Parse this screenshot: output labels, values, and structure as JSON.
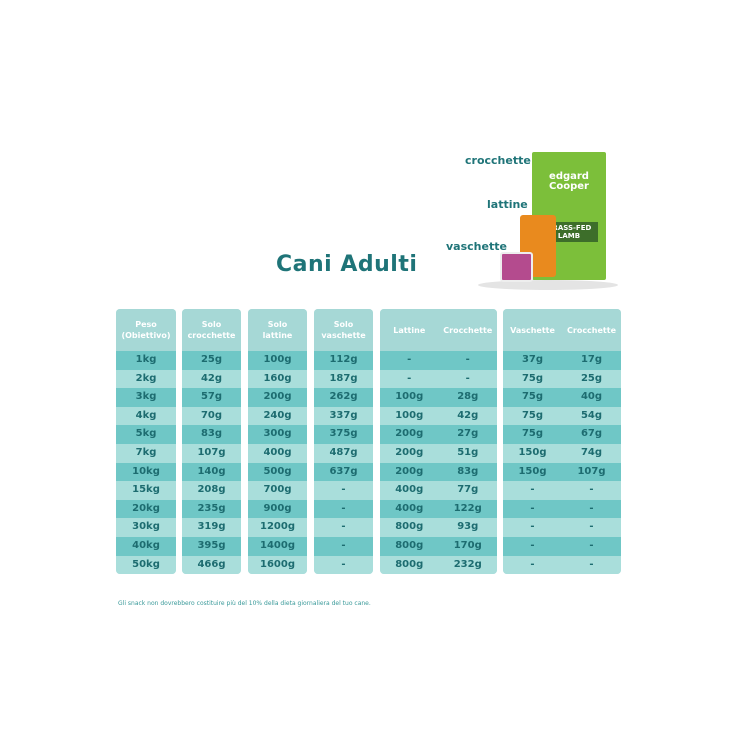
{
  "title": "Cani Adulti",
  "product": {
    "labels": {
      "kibble": "crocchette",
      "cans": "lattine",
      "trays": "vaschette"
    },
    "brand": "edgard Cooper",
    "flavor": "GRASS-FED LAMB"
  },
  "groups": [
    {
      "headers": [
        "Peso\n(Obiettivo)"
      ],
      "rows": [
        [
          "1kg"
        ],
        [
          "2kg"
        ],
        [
          "3kg"
        ],
        [
          "4kg"
        ],
        [
          "5kg"
        ],
        [
          "7kg"
        ],
        [
          "10kg"
        ],
        [
          "15kg"
        ],
        [
          "20kg"
        ],
        [
          "30kg"
        ],
        [
          "40kg"
        ],
        [
          "50kg"
        ]
      ]
    },
    {
      "headers": [
        "Solo\ncrocchette"
      ],
      "rows": [
        [
          "25g"
        ],
        [
          "42g"
        ],
        [
          "57g"
        ],
        [
          "70g"
        ],
        [
          "83g"
        ],
        [
          "107g"
        ],
        [
          "140g"
        ],
        [
          "208g"
        ],
        [
          "235g"
        ],
        [
          "319g"
        ],
        [
          "395g"
        ],
        [
          "466g"
        ]
      ]
    },
    {
      "headers": [
        "Solo\nlattine"
      ],
      "rows": [
        [
          "100g"
        ],
        [
          "160g"
        ],
        [
          "200g"
        ],
        [
          "240g"
        ],
        [
          "300g"
        ],
        [
          "400g"
        ],
        [
          "500g"
        ],
        [
          "700g"
        ],
        [
          "900g"
        ],
        [
          "1200g"
        ],
        [
          "1400g"
        ],
        [
          "1600g"
        ]
      ]
    },
    {
      "headers": [
        "Solo\nvaschette"
      ],
      "rows": [
        [
          "112g"
        ],
        [
          "187g"
        ],
        [
          "262g"
        ],
        [
          "337g"
        ],
        [
          "375g"
        ],
        [
          "487g"
        ],
        [
          "637g"
        ],
        [
          "-"
        ],
        [
          "-"
        ],
        [
          "-"
        ],
        [
          "-"
        ],
        [
          "-"
        ]
      ]
    },
    {
      "headers": [
        "Lattine",
        "Crocchette"
      ],
      "rows": [
        [
          "-",
          "-"
        ],
        [
          "-",
          "-"
        ],
        [
          "100g",
          "28g"
        ],
        [
          "100g",
          "42g"
        ],
        [
          "200g",
          "27g"
        ],
        [
          "200g",
          "51g"
        ],
        [
          "200g",
          "83g"
        ],
        [
          "400g",
          "77g"
        ],
        [
          "400g",
          "122g"
        ],
        [
          "800g",
          "93g"
        ],
        [
          "800g",
          "170g"
        ],
        [
          "800g",
          "232g"
        ]
      ]
    },
    {
      "headers": [
        "Vaschette",
        "Crocchette"
      ],
      "rows": [
        [
          "37g",
          "17g"
        ],
        [
          "75g",
          "25g"
        ],
        [
          "75g",
          "40g"
        ],
        [
          "75g",
          "54g"
        ],
        [
          "75g",
          "67g"
        ],
        [
          "150g",
          "74g"
        ],
        [
          "150g",
          "107g"
        ],
        [
          "-",
          "-"
        ],
        [
          "-",
          "-"
        ],
        [
          "-",
          "-"
        ],
        [
          "-",
          "-"
        ],
        [
          "-",
          "-"
        ]
      ]
    }
  ],
  "note": "Gli snack non dovrebbero costituire più del 10% della dieta giornaliera del tuo cane."
}
